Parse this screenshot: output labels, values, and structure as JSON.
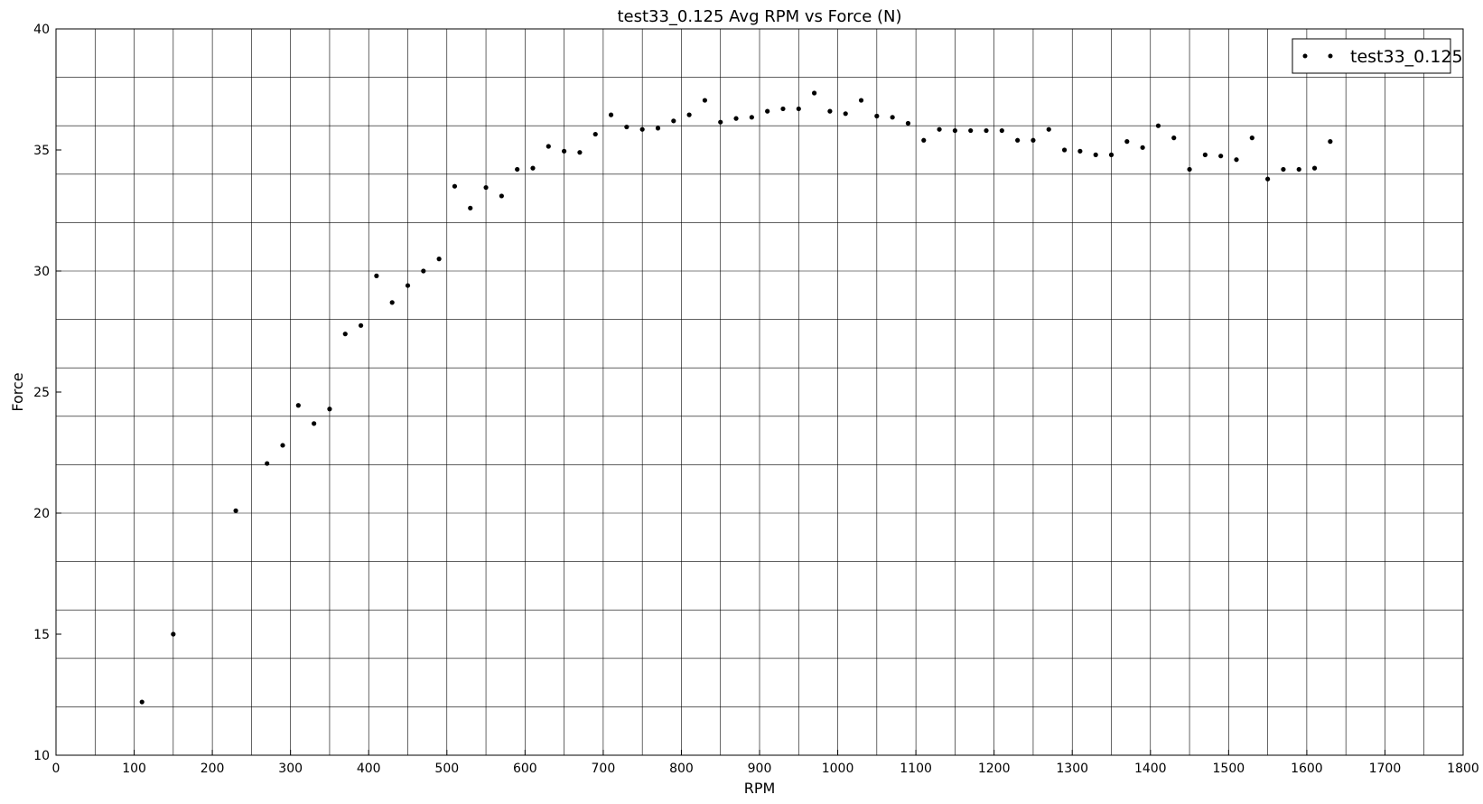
{
  "chart_data": {
    "type": "scatter",
    "title": "test33_0.125 Avg RPM vs Force (N)",
    "xlabel": "RPM",
    "ylabel": "Force",
    "xlim": [
      0,
      1800
    ],
    "ylim": [
      10,
      40
    ],
    "x_ticks": [
      0,
      100,
      200,
      300,
      400,
      500,
      600,
      700,
      800,
      900,
      1000,
      1100,
      1200,
      1300,
      1400,
      1500,
      1600,
      1700,
      1800
    ],
    "y_ticks": [
      10,
      15,
      20,
      25,
      30,
      35,
      40
    ],
    "grid": true,
    "legend_position": "top-right",
    "marker_color": "#000000",
    "series": [
      {
        "name": "test33_0.125",
        "points": [
          [
            110,
            12.2
          ],
          [
            150,
            15.0
          ],
          [
            230,
            20.1
          ],
          [
            270,
            22.05
          ],
          [
            290,
            22.8
          ],
          [
            310,
            24.45
          ],
          [
            330,
            23.7
          ],
          [
            350,
            24.3
          ],
          [
            370,
            27.4
          ],
          [
            390,
            27.75
          ],
          [
            410,
            29.8
          ],
          [
            430,
            28.7
          ],
          [
            450,
            29.4
          ],
          [
            470,
            30.0
          ],
          [
            490,
            30.5
          ],
          [
            510,
            33.5
          ],
          [
            530,
            32.6
          ],
          [
            550,
            33.45
          ],
          [
            570,
            33.1
          ],
          [
            590,
            34.2
          ],
          [
            610,
            34.25
          ],
          [
            630,
            35.15
          ],
          [
            650,
            34.95
          ],
          [
            670,
            34.9
          ],
          [
            690,
            35.65
          ],
          [
            710,
            36.45
          ],
          [
            730,
            35.95
          ],
          [
            750,
            35.85
          ],
          [
            770,
            35.9
          ],
          [
            790,
            36.2
          ],
          [
            810,
            36.45
          ],
          [
            830,
            37.05
          ],
          [
            850,
            36.15
          ],
          [
            870,
            36.3
          ],
          [
            890,
            36.35
          ],
          [
            910,
            36.6
          ],
          [
            930,
            36.7
          ],
          [
            950,
            36.7
          ],
          [
            970,
            37.35
          ],
          [
            990,
            36.6
          ],
          [
            1010,
            36.5
          ],
          [
            1030,
            37.05
          ],
          [
            1050,
            36.4
          ],
          [
            1070,
            36.35
          ],
          [
            1090,
            36.1
          ],
          [
            1110,
            35.4
          ],
          [
            1130,
            35.85
          ],
          [
            1150,
            35.8
          ],
          [
            1170,
            35.8
          ],
          [
            1190,
            35.8
          ],
          [
            1210,
            35.8
          ],
          [
            1230,
            35.4
          ],
          [
            1250,
            35.4
          ],
          [
            1270,
            35.85
          ],
          [
            1290,
            35.0
          ],
          [
            1310,
            34.95
          ],
          [
            1330,
            34.8
          ],
          [
            1350,
            34.8
          ],
          [
            1370,
            35.35
          ],
          [
            1390,
            35.1
          ],
          [
            1410,
            36.0
          ],
          [
            1430,
            35.5
          ],
          [
            1450,
            34.2
          ],
          [
            1470,
            34.8
          ],
          [
            1490,
            34.75
          ],
          [
            1510,
            34.6
          ],
          [
            1530,
            35.5
          ],
          [
            1550,
            33.8
          ],
          [
            1570,
            34.2
          ],
          [
            1590,
            34.2
          ],
          [
            1610,
            34.25
          ],
          [
            1630,
            35.35
          ]
        ]
      }
    ]
  }
}
